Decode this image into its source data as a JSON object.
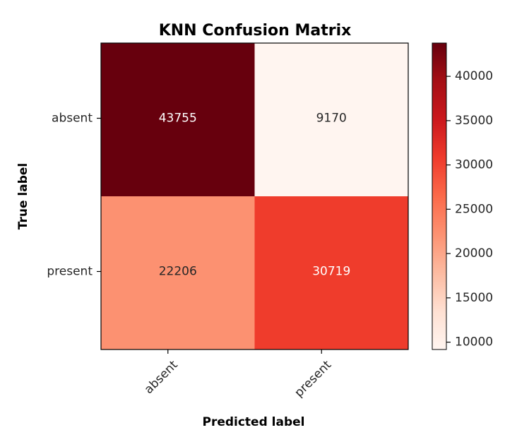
{
  "chart_data": {
    "type": "heatmap",
    "title": "KNN Confusion Matrix",
    "xlabel": "Predicted label",
    "ylabel": "True label",
    "x_categories": [
      "absent",
      "present"
    ],
    "y_categories": [
      "absent",
      "present"
    ],
    "values": [
      [
        43755,
        9170
      ],
      [
        22206,
        30719
      ]
    ],
    "colormap": "Reds",
    "grid": false,
    "colorbar": {
      "ticks": [
        10000,
        15000,
        20000,
        25000,
        30000,
        35000,
        40000
      ],
      "tick_labels": [
        "10000",
        "15000",
        "20000",
        "25000",
        "30000",
        "35000",
        "40000"
      ],
      "range": [
        9170,
        43755
      ]
    },
    "colors": [
      "#fff5f0",
      "#fee0d2",
      "#fcbba1",
      "#fc9272",
      "#fb6a4a",
      "#ef3b2c",
      "#cb181d",
      "#a50f15",
      "#67000d"
    ]
  }
}
